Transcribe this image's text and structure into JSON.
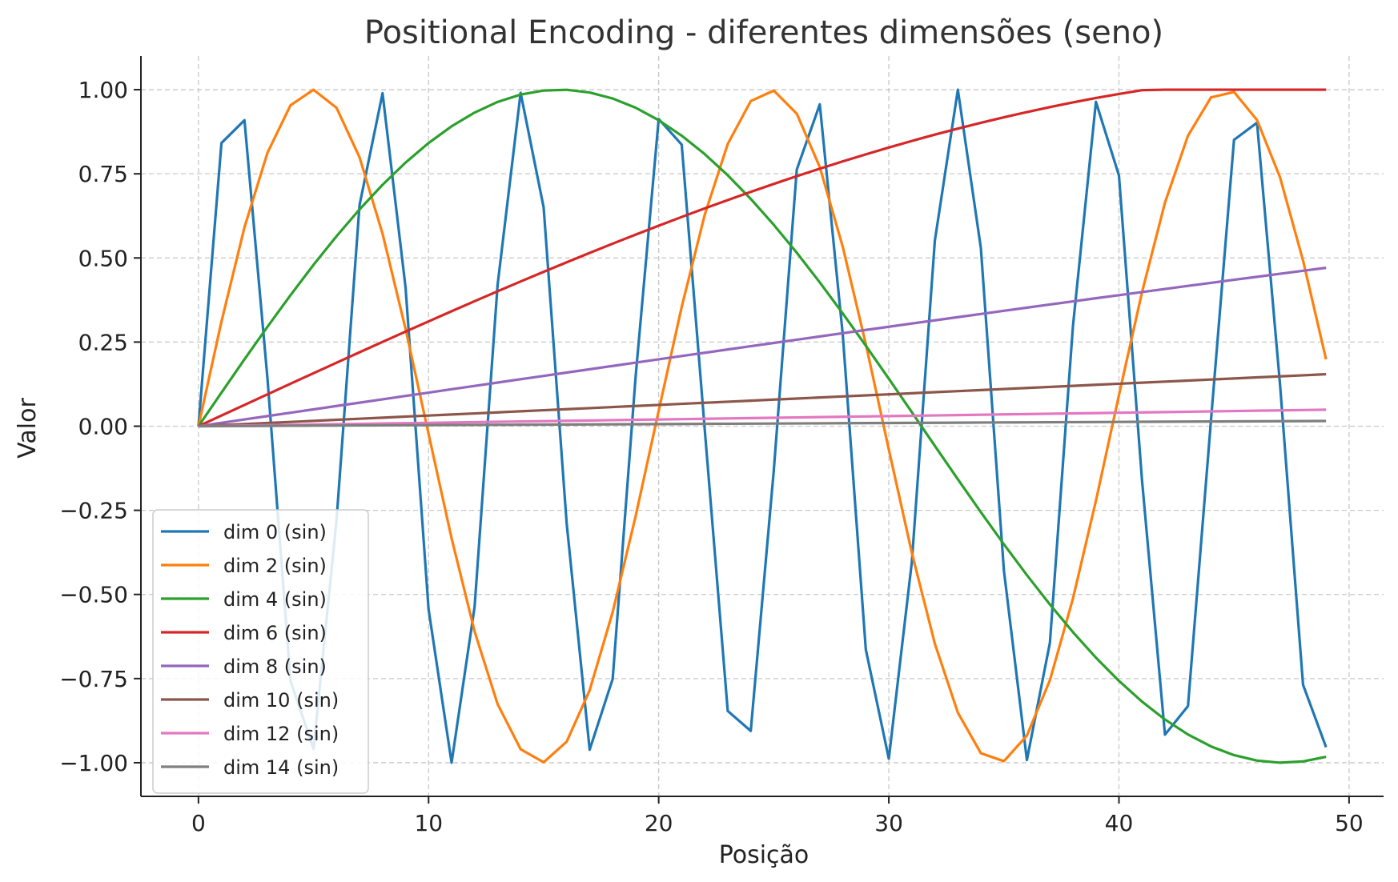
{
  "chart_data": {
    "type": "line",
    "title": "Positional Encoding - diferentes dimensões (seno)",
    "xlabel": "Posição",
    "ylabel": "Valor",
    "xlim": [
      -2.5,
      51.5
    ],
    "ylim": [
      -1.1,
      1.1
    ],
    "x_ticks": [
      0,
      10,
      20,
      30,
      40,
      50
    ],
    "x_tick_labels": [
      "0",
      "10",
      "20",
      "30",
      "40",
      "50"
    ],
    "y_ticks": [
      1.0,
      0.75,
      0.5,
      0.25,
      0.0,
      -0.25,
      -0.5,
      -0.75,
      -1.0
    ],
    "y_tick_labels": [
      "1.00",
      "0.75",
      "0.50",
      "0.25",
      "0.00",
      "−0.25",
      "−0.50",
      "−0.75",
      "−1.00"
    ],
    "grid": true,
    "legend_position": "bottom-left",
    "x": [
      0,
      1,
      2,
      3,
      4,
      5,
      6,
      7,
      8,
      9,
      10,
      11,
      12,
      13,
      14,
      15,
      16,
      17,
      18,
      19,
      20,
      21,
      22,
      23,
      24,
      25,
      26,
      27,
      28,
      29,
      30,
      31,
      32,
      33,
      34,
      35,
      36,
      37,
      38,
      39,
      40,
      41,
      42,
      43,
      44,
      45,
      46,
      47,
      48,
      49
    ],
    "series": [
      {
        "name": "dim 0 (sin)",
        "color": "#1f77b4",
        "values": [
          0,
          0.8415,
          0.9093,
          0.1411,
          -0.7568,
          -0.9589,
          -0.2794,
          0.657,
          0.9894,
          0.4121,
          -0.544,
          -1.0,
          -0.5366,
          0.4202,
          0.9906,
          0.6503,
          -0.2879,
          -0.9614,
          -0.751,
          0.1499,
          0.9129,
          0.8367,
          -0.0089,
          -0.8462,
          -0.9056,
          -0.1324,
          0.7626,
          0.9564,
          0.2709,
          -0.6636,
          -0.988,
          -0.404,
          0.5514,
          0.9999,
          0.5291,
          -0.4282,
          -0.9918,
          -0.6435,
          0.2964,
          0.9638,
          0.7451,
          -0.1586,
          -0.9166,
          -0.8318,
          0.0177,
          0.8509,
          0.9018,
          0.1236,
          -0.7683,
          -0.9538
        ]
      },
      {
        "name": "dim 2 (sin)",
        "color": "#ff7f0e",
        "values": [
          0,
          0.311,
          0.5911,
          0.8126,
          0.9536,
          0.9999,
          0.9461,
          0.799,
          0.5719,
          0.2889,
          -0.0231,
          -0.333,
          -0.6099,
          -0.8259,
          -0.96,
          -0.9988,
          -0.9375,
          -0.7847,
          -0.5524,
          -0.2666,
          0.0461,
          0.3547,
          0.6283,
          0.8388,
          0.9661,
          0.9974,
          0.9286,
          0.77,
          0.5327,
          0.2441,
          -0.0692,
          -0.3762,
          -0.6464,
          -0.8513,
          -0.9717,
          -0.9955,
          -0.9193,
          -0.7549,
          -0.5126,
          -0.2215,
          0.0922,
          0.3975,
          0.6643,
          0.8633,
          0.977,
          0.9932,
          0.9097,
          0.7395,
          0.4923,
          0.1987
        ]
      },
      {
        "name": "dim 4 (sin)",
        "color": "#2ca02c",
        "values": [
          0,
          0.0998,
          0.1987,
          0.2955,
          0.3894,
          0.4794,
          0.5646,
          0.6442,
          0.7174,
          0.7833,
          0.8415,
          0.8912,
          0.932,
          0.9636,
          0.9854,
          0.9975,
          0.9996,
          0.9917,
          0.9738,
          0.9463,
          0.9093,
          0.8632,
          0.8085,
          0.7457,
          0.6755,
          0.5985,
          0.5155,
          0.4274,
          0.335,
          0.2392,
          0.1411,
          0.0416,
          -0.0584,
          -0.1577,
          -0.2555,
          -0.3508,
          -0.4425,
          -0.5298,
          -0.6119,
          -0.6878,
          -0.7568,
          -0.8183,
          -0.8716,
          -0.9162,
          -0.9516,
          -0.9775,
          -0.9937,
          -0.9999,
          -0.9962,
          -0.9825
        ]
      },
      {
        "name": "dim 6 (sin)",
        "color": "#d62728",
        "values": [
          0,
          0.0316,
          0.0632,
          0.0947,
          0.1262,
          0.1575,
          0.1887,
          0.2197,
          0.2505,
          0.2811,
          0.3115,
          0.3416,
          0.3714,
          0.4009,
          0.43,
          0.4587,
          0.487,
          0.5149,
          0.5424,
          0.5694,
          0.5958,
          0.6218,
          0.6472,
          0.672,
          0.6963,
          0.7199,
          0.7429,
          0.7652,
          0.7869,
          0.8078,
          0.8281,
          0.8476,
          0.8664,
          0.8843,
          0.9015,
          0.918,
          0.9335,
          0.9483,
          0.9622,
          0.9752,
          0.9873,
          0.9985,
          1.0,
          1.0,
          1.0,
          1.0,
          1.0,
          1.0,
          1.0,
          1.0
        ]
      },
      {
        "name": "dim 8 (sin)",
        "color": "#9467bd",
        "values": [
          0,
          0.01,
          0.02,
          0.03,
          0.04,
          0.05,
          0.06,
          0.0699,
          0.0799,
          0.0899,
          0.0998,
          0.1098,
          0.1197,
          0.1296,
          0.1395,
          0.1494,
          0.1593,
          0.1692,
          0.179,
          0.1889,
          0.1987,
          0.2085,
          0.2182,
          0.228,
          0.2377,
          0.2474,
          0.2571,
          0.2667,
          0.2764,
          0.286,
          0.2955,
          0.3051,
          0.3146,
          0.324,
          0.3335,
          0.3429,
          0.3523,
          0.3616,
          0.3709,
          0.3802,
          0.3894,
          0.3986,
          0.4078,
          0.4169,
          0.4259,
          0.435,
          0.4439,
          0.4529,
          0.4618,
          0.4706
        ]
      },
      {
        "name": "dim 10 (sin)",
        "color": "#8c564b",
        "values": [
          0,
          0.0032,
          0.0063,
          0.0095,
          0.0126,
          0.0158,
          0.019,
          0.0221,
          0.0253,
          0.0285,
          0.0316,
          0.0348,
          0.0379,
          0.0411,
          0.0443,
          0.0474,
          0.0506,
          0.0537,
          0.0569,
          0.06,
          0.0632,
          0.0664,
          0.0695,
          0.0727,
          0.0758,
          0.079,
          0.0821,
          0.0853,
          0.0884,
          0.0916,
          0.0947,
          0.0979,
          0.101,
          0.1042,
          0.1073,
          0.1105,
          0.1136,
          0.1167,
          0.1199,
          0.123,
          0.1262,
          0.1293,
          0.1324,
          0.1356,
          0.1387,
          0.1418,
          0.145,
          0.1481,
          0.1512,
          0.1544
        ]
      },
      {
        "name": "dim 12 (sin)",
        "color": "#e377c2",
        "values": [
          0,
          0.001,
          0.002,
          0.003,
          0.004,
          0.005,
          0.006,
          0.007,
          0.008,
          0.009,
          0.01,
          0.011,
          0.012,
          0.013,
          0.014,
          0.015,
          0.016,
          0.017,
          0.018,
          0.019,
          0.02,
          0.021,
          0.022,
          0.023,
          0.024,
          0.025,
          0.026,
          0.027,
          0.028,
          0.029,
          0.03,
          0.031,
          0.032,
          0.033,
          0.034,
          0.035,
          0.036,
          0.037,
          0.038,
          0.039,
          0.04,
          0.041,
          0.042,
          0.043,
          0.044,
          0.045,
          0.046,
          0.047,
          0.048,
          0.049
        ]
      },
      {
        "name": "dim 14 (sin)",
        "color": "#7f7f7f",
        "values": [
          0,
          0.0003,
          0.0006,
          0.0009,
          0.0013,
          0.0016,
          0.0019,
          0.0022,
          0.0025,
          0.0028,
          0.0032,
          0.0035,
          0.0038,
          0.0041,
          0.0044,
          0.0047,
          0.0051,
          0.0054,
          0.0057,
          0.006,
          0.0063,
          0.0066,
          0.007,
          0.0073,
          0.0076,
          0.0079,
          0.0082,
          0.0085,
          0.0089,
          0.0092,
          0.0095,
          0.0098,
          0.0101,
          0.0104,
          0.0108,
          0.0111,
          0.0114,
          0.0117,
          0.012,
          0.0123,
          0.0126,
          0.013,
          0.0133,
          0.0136,
          0.0139,
          0.0142,
          0.0145,
          0.0149,
          0.0152,
          0.0155
        ]
      }
    ]
  }
}
